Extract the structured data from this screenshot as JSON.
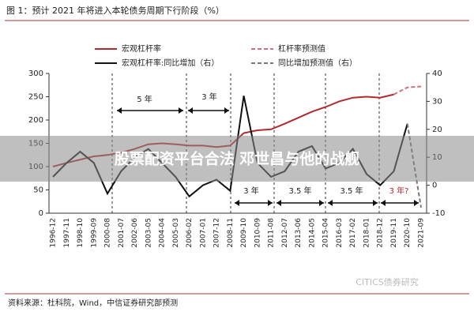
{
  "title": "图 1：预计 2021 年将进入本轮债务周期下行阶段（%）",
  "source": "资料来源：杜科院，Wind，中信证券研究部预测",
  "banner": "股票配资平台合法 邓世昌与他的战舰",
  "watermark": "CITICS债券研究",
  "chart_data": {
    "type": "line",
    "categories": [
      "1996-12",
      "1997-11",
      "1998-10",
      "1999-09",
      "2000-08",
      "2001-07",
      "2002-06",
      "2003-05",
      "2004-04",
      "2005-03",
      "2006-02",
      "2007-01",
      "2007-12",
      "2008-11",
      "2009-10",
      "2010-09",
      "2011-08",
      "2012-07",
      "2013-06",
      "2014-05",
      "2015-04",
      "2016-03",
      "2017-02",
      "2018-01",
      "2018-12",
      "2019-11",
      "2020-10",
      "2021-09"
    ],
    "series": [
      {
        "name": "宏观杠杆率",
        "color": "#b22a2e",
        "dash": false,
        "values": [
          100,
          108,
          115,
          122,
          125,
          130,
          138,
          148,
          150,
          148,
          145,
          145,
          142,
          145,
          172,
          178,
          180,
          192,
          205,
          218,
          228,
          240,
          248,
          250,
          248,
          255,
          null,
          null
        ]
      },
      {
        "name": "杠杆率预测值",
        "color": "#d0707a",
        "dash": true,
        "values": [
          null,
          null,
          null,
          null,
          null,
          null,
          null,
          null,
          null,
          null,
          null,
          null,
          null,
          null,
          null,
          null,
          null,
          null,
          null,
          null,
          null,
          null,
          null,
          null,
          null,
          255,
          270,
          272
        ]
      },
      {
        "name": "宏观杠杆率:同比增加（右）",
        "color": "#111111",
        "dash": false,
        "axis": "y2",
        "values": [
          3,
          8,
          12,
          8,
          -3,
          5,
          10,
          13,
          8,
          3,
          -4,
          0,
          2,
          -2,
          32,
          8,
          3,
          5,
          12,
          14,
          6,
          8,
          13,
          4,
          0,
          5,
          22,
          null
        ]
      },
      {
        "name": "同比增加预测值（右）",
        "color": "#777777",
        "dash": true,
        "axis": "y2",
        "values": [
          null,
          null,
          null,
          null,
          null,
          null,
          null,
          null,
          null,
          null,
          null,
          null,
          null,
          null,
          null,
          null,
          null,
          null,
          null,
          null,
          null,
          null,
          null,
          null,
          null,
          null,
          22,
          -8
        ]
      }
    ],
    "ylim": [
      0,
      300
    ],
    "yticks": [
      0,
      50,
      100,
      150,
      200,
      250,
      300
    ],
    "y2lim": [
      -10,
      40
    ],
    "y2ticks": [
      -10,
      0,
      10,
      20,
      30,
      40
    ],
    "annotations": [
      "5 年",
      "3 年",
      "3 年",
      "3.5 年",
      "3.5 年",
      "3 年?"
    ]
  }
}
